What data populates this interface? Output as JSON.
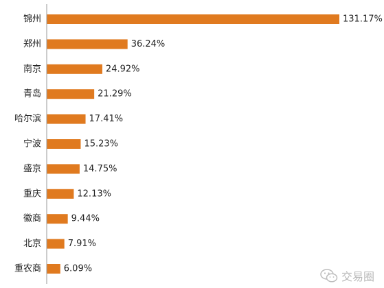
{
  "chart_data": {
    "type": "bar",
    "orientation": "horizontal",
    "categories": [
      "锦州",
      "郑州",
      "南京",
      "青岛",
      "哈尔滨",
      "宁波",
      "盛京",
      "重庆",
      "徽商",
      "北京",
      "重农商"
    ],
    "values": [
      131.17,
      36.24,
      24.92,
      21.29,
      17.41,
      15.23,
      14.75,
      12.13,
      9.44,
      7.91,
      6.09
    ],
    "value_labels": [
      "131.17%",
      "36.24%",
      "24.92%",
      "21.29%",
      "17.41%",
      "15.23%",
      "14.75%",
      "12.13%",
      "9.44%",
      "7.91%",
      "6.09%"
    ],
    "unit": "%",
    "xlim": [
      0,
      131.17
    ],
    "grid": false,
    "bar_color": "#E07A1F"
  },
  "watermark": {
    "text": "交易圈",
    "icon": "wechat-icon"
  }
}
